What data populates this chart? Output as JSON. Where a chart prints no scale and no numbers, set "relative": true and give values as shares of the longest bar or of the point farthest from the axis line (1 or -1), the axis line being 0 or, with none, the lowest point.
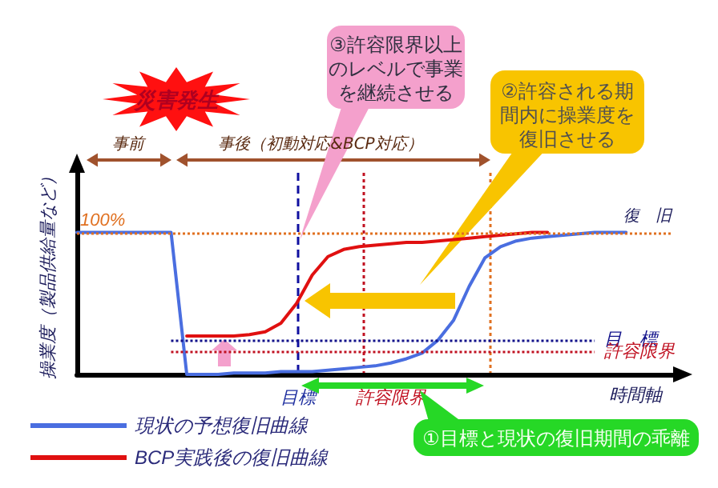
{
  "chart_data": {
    "type": "line",
    "relative": true,
    "xlabel": "時間軸",
    "ylabel": "操業度（製品供給量など）",
    "categories": [
      null,
      null,
      null,
      null,
      null,
      null,
      null,
      null,
      null,
      null,
      null,
      null,
      null,
      null,
      null,
      null,
      null,
      null,
      null,
      null,
      null,
      null,
      null,
      null,
      null,
      null,
      null,
      null,
      null,
      null,
      null,
      null,
      null,
      null,
      null,
      null,
      null,
      null,
      null
    ],
    "series": [
      {
        "name": "現状の予想復旧曲線",
        "color": "#4a6ee0",
        "values": [
          1,
          1,
          1,
          1,
          1,
          1,
          1,
          0,
          0,
          0,
          0.01,
          0.01,
          0.01,
          0.02,
          0.02,
          0.02,
          0.03,
          0.04,
          0.05,
          0.06,
          0.08,
          0.11,
          0.15,
          0.24,
          0.38,
          0.62,
          0.82,
          0.9,
          0.94,
          0.96,
          0.97,
          0.98,
          0.99,
          1,
          1,
          1,
          null,
          null,
          null
        ]
      },
      {
        "name": "BCP実践後の復旧曲線",
        "color": "#e01010",
        "values": [
          null,
          null,
          null,
          null,
          null,
          null,
          null,
          0.27,
          0.27,
          0.27,
          0.27,
          0.28,
          0.3,
          0.36,
          0.5,
          0.7,
          0.83,
          0.88,
          0.9,
          0.91,
          0.92,
          0.93,
          0.93,
          0.94,
          0.95,
          0.96,
          0.97,
          0.98,
          0.99,
          1,
          1,
          null,
          null,
          null,
          null,
          null,
          null,
          null,
          null
        ]
      }
    ],
    "ref_lines": [
      {
        "axis": "y",
        "value": 1,
        "label": "100%",
        "color": "#e07020",
        "line_style": "dotted"
      },
      {
        "axis": "y",
        "value": 0.24,
        "label": "目　標",
        "color": "#10108a",
        "line_style": "dotted"
      },
      {
        "axis": "y",
        "value": 0.16,
        "label": "許容限界",
        "color": "#c01020",
        "line_style": "dotted"
      }
    ],
    "annotations": [
      "災害発生",
      "事前",
      "事後（初動対応&BCP対応）",
      "③許容限界以上のレベルで事業を継続させる",
      "②許容される期間内に操業度を復旧させる",
      "①目標と現状の復旧期間の乖離",
      "復　旧",
      "目標",
      "許容限界"
    ],
    "legend": "bottom left",
    "marker": "none",
    "line_style": "solid",
    "grid": false
  }
}
